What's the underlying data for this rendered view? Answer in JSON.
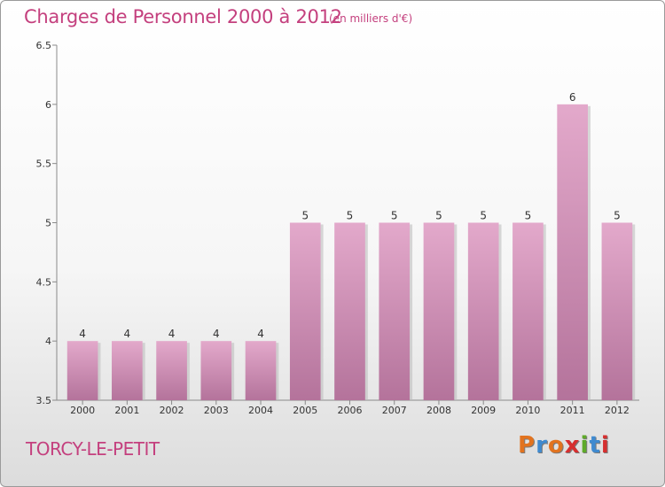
{
  "header": {
    "title": "Charges de Personnel 2000 à 2012",
    "unit": "(en milliers d'€)"
  },
  "footer": {
    "commune": "TORCY-LE-PETIT",
    "logo_text": "Proxiti",
    "logo_letters": [
      "P",
      "r",
      "o",
      "x",
      "i",
      "t",
      "i"
    ],
    "logo_colors": [
      "#e2731f",
      "#3f8ad0",
      "#e2731f",
      "#d62f2f",
      "#5faa2a",
      "#3f8ad0",
      "#d62f2f"
    ]
  },
  "colors": {
    "title": "#c4407e",
    "bar_top": "#e3a9cb",
    "bar_bottom": "#b4739b"
  },
  "chart_data": {
    "type": "bar",
    "title": "Charges de Personnel 2000 à 2012",
    "subtitle": "(en milliers d'€)",
    "xlabel": "",
    "ylabel": "",
    "categories": [
      "2000",
      "2001",
      "2002",
      "2003",
      "2004",
      "2005",
      "2006",
      "2007",
      "2008",
      "2009",
      "2010",
      "2011",
      "2012"
    ],
    "values": [
      4,
      4,
      4,
      4,
      4,
      5,
      5,
      5,
      5,
      5,
      5,
      6,
      5
    ],
    "data_labels": [
      "4",
      "4",
      "4",
      "4",
      "4",
      "5",
      "5",
      "5",
      "5",
      "5",
      "5",
      "6",
      "5"
    ],
    "ylim": [
      3.5,
      6.5
    ],
    "yticks": [
      3.5,
      4,
      4.5,
      5,
      5.5,
      6,
      6.5
    ],
    "ytick_labels": [
      "3.5",
      "4",
      "4.5",
      "5",
      "5.5",
      "6",
      "6.5"
    ],
    "grid": false
  }
}
